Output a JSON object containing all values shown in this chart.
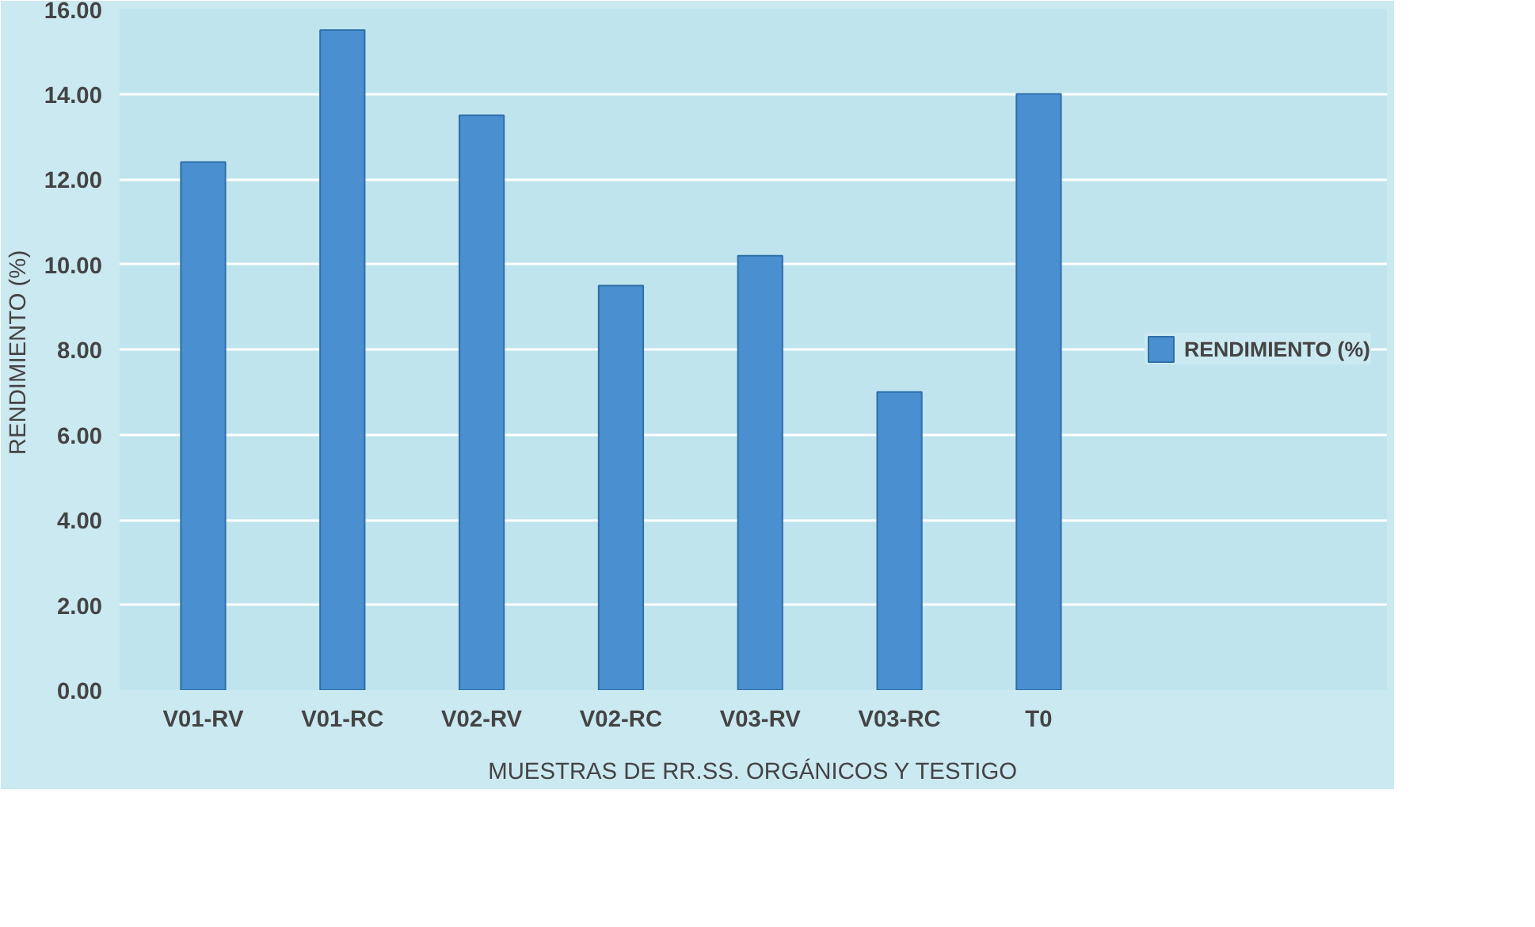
{
  "chart_data": {
    "type": "bar",
    "xlabel": "MUESTRAS DE RR.SS. ORGÁNICOS Y TESTIGO",
    "ylabel": "RENDIMIENTO  (%)",
    "categories": [
      "V01-RV",
      "V01-RC",
      "V02-RV",
      "V02-RC",
      "V03-RV",
      "V03-RC",
      "T0"
    ],
    "series": [
      {
        "name": "RENDIMIENTO (%)",
        "color": "#4a8fd0",
        "values": [
          12.4,
          15.5,
          13.5,
          9.5,
          10.2,
          7.0,
          14.0
        ]
      }
    ],
    "ylim": [
      0,
      16
    ],
    "yticks": [
      {
        "value": 0,
        "label": "0.00"
      },
      {
        "value": 2,
        "label": "2.00"
      },
      {
        "value": 4,
        "label": "4.00"
      },
      {
        "value": 6,
        "label": "6.00"
      },
      {
        "value": 8,
        "label": "8.00"
      },
      {
        "value": 10,
        "label": "10.00"
      },
      {
        "value": 12,
        "label": "12.00"
      },
      {
        "value": 14,
        "label": "14.00"
      },
      {
        "value": 16,
        "label": "16.00"
      }
    ],
    "grid": "y",
    "legend": "right"
  }
}
